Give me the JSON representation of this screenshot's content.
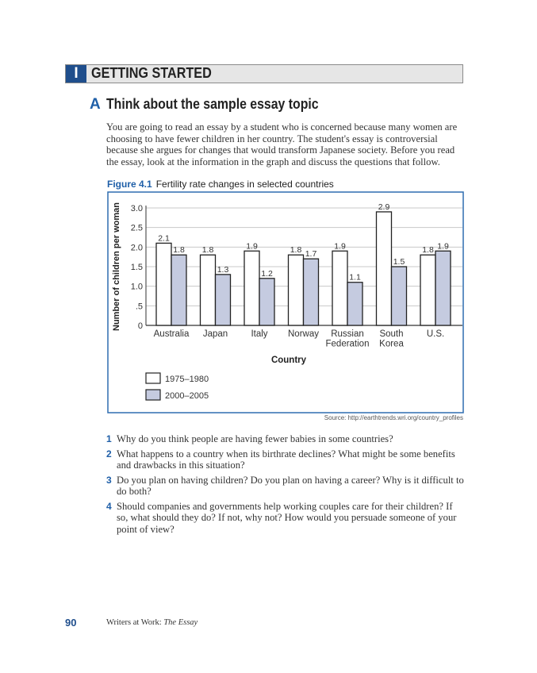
{
  "section": {
    "number": "I",
    "title": "GETTING STARTED"
  },
  "subsection": {
    "letter": "A",
    "title": "Think about the sample essay topic"
  },
  "intro": "You are going to read an essay by a student who is concerned because many women are choosing to have fewer children in her country. The student's essay is controversial because she argues for changes that would transform Japanese society. Before you read the essay, look at the information in the graph and discuss the questions that follow.",
  "figure": {
    "label": "Figure 4.1",
    "caption": "Fertility rate changes in selected countries",
    "source": "Source: http://earthtrends.wri.org/country_profiles"
  },
  "chart_data": {
    "type": "bar",
    "title": "Fertility rate changes in selected countries",
    "xlabel": "Country",
    "ylabel": "Number of children per woman",
    "ylim": [
      0,
      3.0
    ],
    "yticks": [
      "0",
      ".5",
      "1.0",
      "1.5",
      "2.0",
      "2.5",
      "3.0"
    ],
    "ytick_values": [
      0,
      0.5,
      1.0,
      1.5,
      2.0,
      2.5,
      3.0
    ],
    "grid": true,
    "legend_position": "bottom-left",
    "categories": [
      [
        "Australia"
      ],
      [
        "Japan"
      ],
      [
        "Italy"
      ],
      [
        "Norway"
      ],
      [
        "Russian",
        "Federation"
      ],
      [
        "South",
        "Korea"
      ],
      [
        "U.S."
      ]
    ],
    "series": [
      {
        "name": "1975–1980",
        "color": "#ffffff",
        "values": [
          2.1,
          1.8,
          1.9,
          1.8,
          1.9,
          2.9,
          1.8
        ],
        "labels": [
          "2.1",
          "1.8",
          "1.9",
          "1.8",
          "1.9",
          "2.9",
          "1.8"
        ]
      },
      {
        "name": "2000–2005",
        "color": "#c5cbe0",
        "values": [
          1.8,
          1.3,
          1.2,
          1.7,
          1.1,
          1.5,
          1.9
        ],
        "labels": [
          "1.8",
          "1.3",
          "1.2",
          "1.7",
          "1.1",
          "1.5",
          "1.9"
        ]
      }
    ]
  },
  "questions": [
    {
      "n": "1",
      "text": "Why do you think people are having fewer babies in some countries?"
    },
    {
      "n": "2",
      "text": "What happens to a country when its birthrate declines? What might be some benefits and drawbacks in this situation?"
    },
    {
      "n": "3",
      "text": "Do you plan on having children? Do you plan on having a career? Why is it difficult to do both?"
    },
    {
      "n": "4",
      "text": "Should companies and governments help working couples care for their children? If so, what should they do? If not, why not? How would you persuade someone of your point of view?"
    }
  ],
  "footer": {
    "page": "90",
    "book": "Writers at Work: ",
    "book_italic": "The Essay"
  },
  "colors": {
    "accent": "#1f4e8c",
    "bar2": "#c5cbe0",
    "frame": "#2f6db0"
  }
}
